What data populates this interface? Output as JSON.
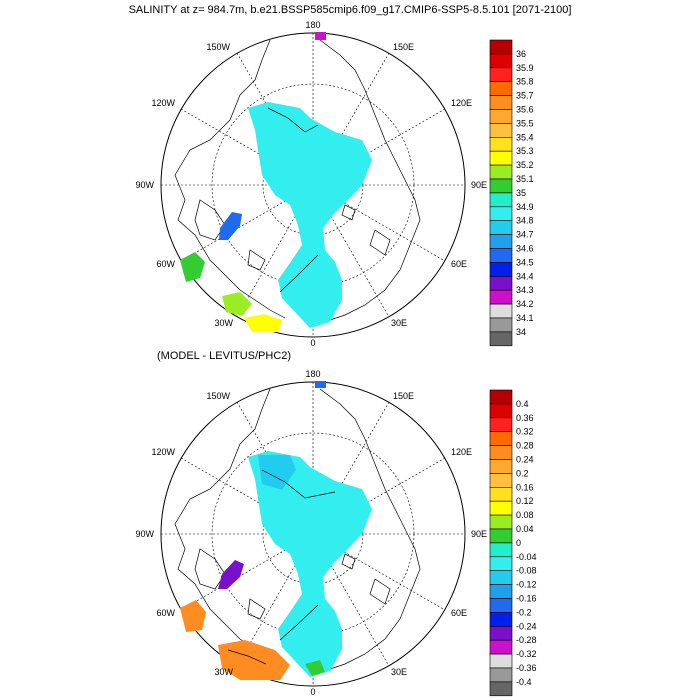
{
  "titles": {
    "main": "SALINITY at z= 984.7m, b.e21.BSSP585cmip6.f09_g17.CMIP6-SSP5-8.5.101 [2071-2100]",
    "sub": "(MODEL - LEVITUS/PHC2)"
  },
  "map_labels": {
    "lon_180": "180",
    "lon_150W": "150W",
    "lon_150E": "150E",
    "lon_120W": "120W",
    "lon_120E": "120E",
    "lon_90W": "90W",
    "lon_90E": "90E",
    "lon_60W": "60W",
    "lon_60E": "60E",
    "lon_30W": "30W",
    "lon_30E": "30E",
    "lon_0": "0"
  },
  "colorbars": [
    {
      "labels": [
        "36",
        "35.9",
        "35.8",
        "35.7",
        "35.6",
        "35.5",
        "35.4",
        "35.3",
        "35.2",
        "35.1",
        "35",
        "34.9",
        "34.8",
        "34.7",
        "34.6",
        "34.5",
        "34.4",
        "34.3",
        "34.2",
        "34.1",
        "34"
      ],
      "colors": [
        "#b40000",
        "#dc0000",
        "#ff2020",
        "#ff6a00",
        "#ff8c20",
        "#ffa830",
        "#ffc040",
        "#ffe020",
        "#ffff00",
        "#99ee22",
        "#33cc33",
        "#22eecc",
        "#33eeee",
        "#22ccee",
        "#1fa0ee",
        "#1f6aee",
        "#0020ee",
        "#7a10cc",
        "#cc10cc",
        "#dddddd",
        "#999999",
        "#666666"
      ]
    },
    {
      "labels": [
        "0.4",
        "0.36",
        "0.32",
        "0.28",
        "0.24",
        "0.2",
        "0.16",
        "0.12",
        "0.08",
        "0.04",
        "0",
        "-0.04",
        "-0.08",
        "-0.12",
        "-0.16",
        "-0.2",
        "-0.24",
        "-0.28",
        "-0.32",
        "-0.36",
        "-0.4"
      ],
      "colors": [
        "#b40000",
        "#dc0000",
        "#ff2020",
        "#ff6a00",
        "#ff8c20",
        "#ffa830",
        "#ffc040",
        "#ffe020",
        "#ffff00",
        "#99ee22",
        "#33cc33",
        "#22eecc",
        "#33eeee",
        "#22ccee",
        "#1fa0ee",
        "#1f6aee",
        "#0020ee",
        "#7a10cc",
        "#cc10cc",
        "#dddddd",
        "#999999",
        "#666666"
      ]
    }
  ],
  "fields": {
    "top_main": "#33eeee",
    "top_blob1": "#1f6aee",
    "top_blob2": "#33cc33",
    "top_blob3": "#99ee22",
    "top_blob4": "#ffff00",
    "top_blob5": "#cc10cc",
    "bot_main": "#33eeee",
    "bot_blob1": "#7a10cc",
    "bot_blob2": "#ff8c20",
    "bot_blob3": "#1fa0ee",
    "bot_blob4": "#0020ee"
  }
}
